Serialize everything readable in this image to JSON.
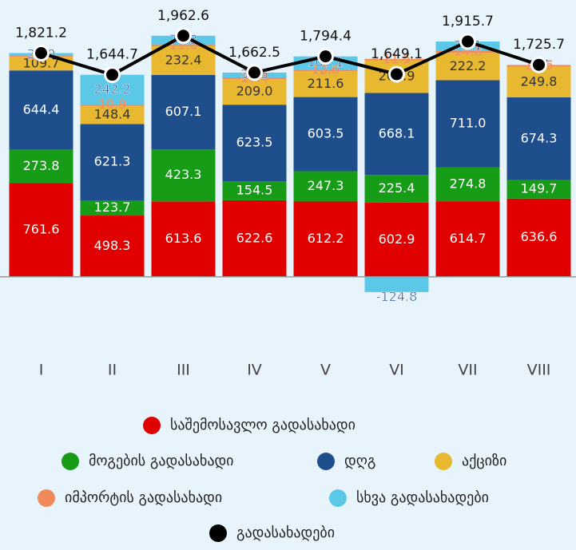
{
  "chart_data": {
    "type": "bar",
    "stacked": true,
    "categories": [
      "I",
      "II",
      "III",
      "IV",
      "V",
      "VI",
      "VII",
      "VIII"
    ],
    "series": [
      {
        "name": "საშემოსავლო გადასახადი",
        "color": "#e00000",
        "values": [
          761.6,
          498.3,
          613.6,
          622.6,
          612.2,
          602.9,
          614.7,
          636.6
        ],
        "value_labels": [
          "761.6",
          "498.3",
          "613.6",
          "622.6",
          "612.2",
          "602.9",
          "614.7",
          "636.6"
        ]
      },
      {
        "name": "მოგების გადასახადი",
        "color": "#169c16",
        "values": [
          273.8,
          123.7,
          423.3,
          154.5,
          247.3,
          225.4,
          274.8,
          149.7
        ],
        "value_labels": [
          "273.8",
          "123.7",
          "423.3",
          "154.5",
          "247.3",
          "225.4",
          "274.8",
          "149.7"
        ]
      },
      {
        "name": "დღგ",
        "color": "#1f4e8c",
        "values": [
          644.4,
          621.3,
          607.1,
          623.5,
          603.5,
          668.1,
          711.0,
          674.3
        ],
        "value_labels": [
          "644.4",
          "621.3",
          "607.1",
          "623.5",
          "603.5",
          "668.1",
          "711.0",
          "674.3"
        ]
      },
      {
        "name": "აქციზი",
        "color": "#e8b830",
        "values": [
          109.7,
          148.4,
          232.4,
          209.0,
          211.6,
          265.9,
          222.2,
          249.8
        ],
        "value_labels": [
          "109.7",
          "148.4",
          "232.4",
          "209.0",
          "211.6",
          "265.9",
          "222.2",
          "249.8"
        ]
      },
      {
        "name": "იმპორტის გადასახადი",
        "color": "#f08a5a",
        "values": [
          8.7,
          10.9,
          11.8,
          13.4,
          12.6,
          11.5,
          14.8,
          11.6
        ],
        "value_labels": [
          "8.7",
          "10.9",
          "11.8",
          "13.4",
          "12.6",
          "11.5",
          "14.8",
          "11.6"
        ]
      },
      {
        "name": "სხვა გადასახადები",
        "color": "#5bc8e8",
        "values": [
          23.0,
          242.2,
          74.3,
          39.5,
          107.1,
          -124.8,
          78.1,
          3.7
        ],
        "value_labels": [
          "23.0",
          "242.2",
          "74.3",
          "39.5",
          "107.1",
          "-124.8",
          "78.1",
          "3.7"
        ]
      }
    ],
    "line": {
      "name": "გადასახადები",
      "color": "#000000",
      "values": [
        1821.2,
        1644.7,
        1962.6,
        1662.5,
        1794.4,
        1649.1,
        1915.7,
        1725.7
      ],
      "value_labels": [
        "1,821.2",
        "1,644.7",
        "1,962.6",
        "1,662.5",
        "1,794.4",
        "1,649.1",
        "1,915.7",
        "1,725.7"
      ]
    },
    "ylim": [
      -600,
      2000
    ]
  }
}
